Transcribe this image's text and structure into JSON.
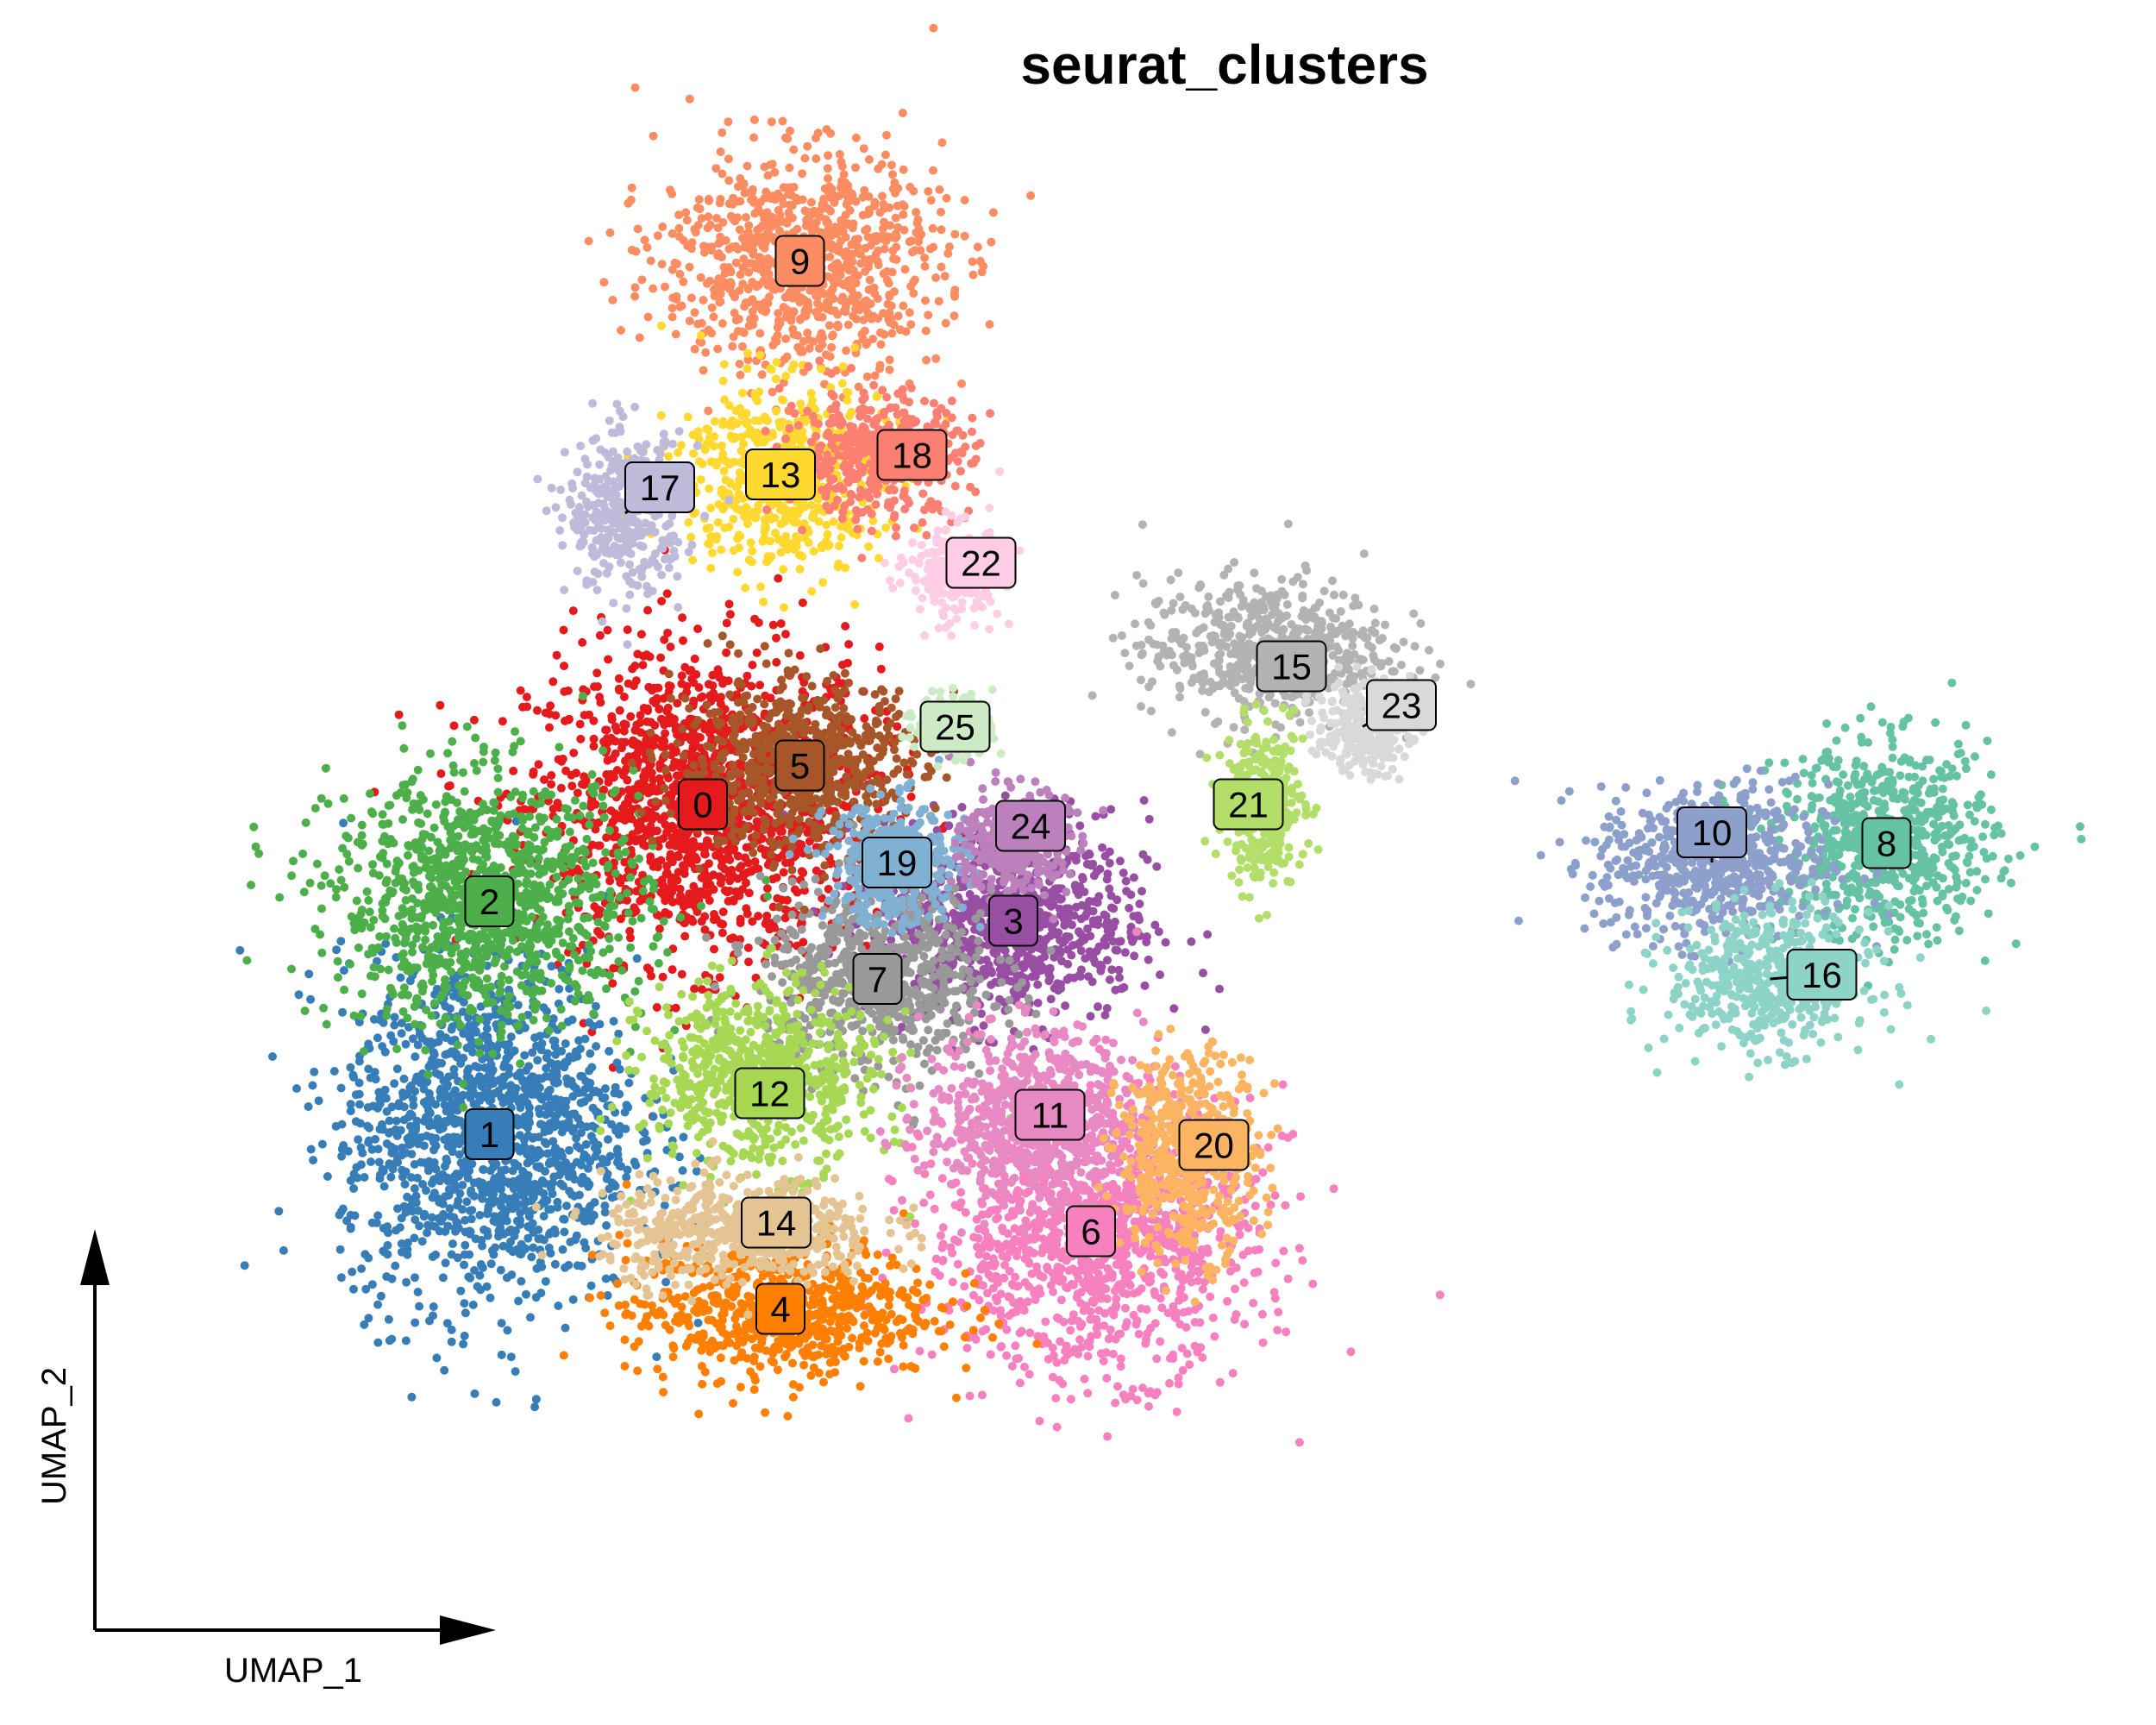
{
  "chart_data": {
    "type": "scatter",
    "title": "seurat_clusters",
    "xlabel": "UMAP_1",
    "ylabel": "UMAP_2",
    "grid": false,
    "legend": "none (cluster labels drawn on plot)",
    "clusters": [
      {
        "id": "0",
        "color": "#E41A1C",
        "centroid": [
          -6.0,
          3.5
        ]
      },
      {
        "id": "1",
        "color": "#377EB8",
        "centroid": [
          -11.5,
          -5.0
        ]
      },
      {
        "id": "2",
        "color": "#4DAF4A",
        "centroid": [
          -11.5,
          1.0
        ]
      },
      {
        "id": "3",
        "color": "#984EA3",
        "centroid": [
          2.0,
          0.5
        ]
      },
      {
        "id": "4",
        "color": "#FF7F00",
        "centroid": [
          -4.0,
          -9.5
        ]
      },
      {
        "id": "5",
        "color": "#A65628",
        "centroid": [
          -3.5,
          4.5
        ]
      },
      {
        "id": "6",
        "color": "#F781BF",
        "centroid": [
          4.0,
          -7.5
        ]
      },
      {
        "id": "7",
        "color": "#999999",
        "centroid": [
          -1.5,
          -1.0
        ]
      },
      {
        "id": "8",
        "color": "#66C2A5",
        "centroid": [
          24.5,
          2.5
        ]
      },
      {
        "id": "9",
        "color": "#FC8D62",
        "centroid": [
          -3.5,
          17.5
        ]
      },
      {
        "id": "10",
        "color": "#8DA0CB",
        "centroid": [
          20.0,
          2.0
        ]
      },
      {
        "id": "11",
        "color": "#E78AC3",
        "centroid": [
          2.5,
          -4.5
        ]
      },
      {
        "id": "12",
        "color": "#A6D854",
        "centroid": [
          -4.5,
          -3.5
        ]
      },
      {
        "id": "13",
        "color": "#FFD92F",
        "centroid": [
          -4.0,
          12.0
        ]
      },
      {
        "id": "14",
        "color": "#E5C494",
        "centroid": [
          -5.0,
          -7.5
        ]
      },
      {
        "id": "15",
        "color": "#B3B3B3",
        "centroid": [
          8.5,
          7.5
        ]
      },
      {
        "id": "16",
        "color": "#8DD3C7",
        "centroid": [
          21.5,
          -1.0
        ]
      },
      {
        "id": "17",
        "color": "#BEBADA",
        "centroid": [
          -8.0,
          11.0
        ]
      },
      {
        "id": "18",
        "color": "#FB8072",
        "centroid": [
          -1.5,
          12.5
        ]
      },
      {
        "id": "19",
        "color": "#80B1D3",
        "centroid": [
          -1.0,
          2.0
        ]
      },
      {
        "id": "20",
        "color": "#FDB462",
        "centroid": [
          6.5,
          -5.5
        ]
      },
      {
        "id": "21",
        "color": "#B3DE69",
        "centroid": [
          8.5,
          3.5
        ]
      },
      {
        "id": "22",
        "color": "#FCCDE5",
        "centroid": [
          0.5,
          9.5
        ]
      },
      {
        "id": "23",
        "color": "#D9D9D9",
        "centroid": [
          11.0,
          5.5
        ]
      },
      {
        "id": "24",
        "color": "#BC80BD",
        "centroid": [
          2.0,
          2.5
        ]
      },
      {
        "id": "25",
        "color": "#CCEBC5",
        "centroid": [
          0.5,
          5.5
        ]
      }
    ]
  }
}
